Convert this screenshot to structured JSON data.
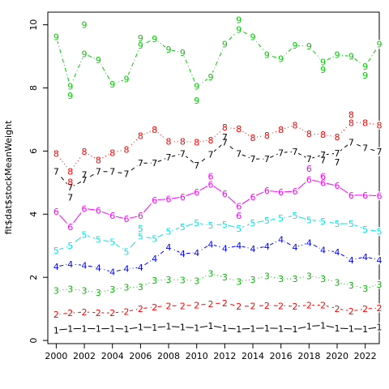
{
  "chart_data": {
    "type": "line",
    "ylabel": "fit$dat$stockMeanWeight",
    "xlabel": "",
    "xlim": [
      1999.4,
      2023.0
    ],
    "ylim": [
      -0.1,
      10.4
    ],
    "x_ticks": [
      2000,
      2002,
      2004,
      2006,
      2008,
      2010,
      2012,
      2014,
      2016,
      2018,
      2020,
      2022
    ],
    "y_ticks": [
      0,
      2,
      4,
      6,
      8,
      10
    ],
    "x": [
      2000,
      2001,
      2002,
      2003,
      2004,
      2005,
      2006,
      2007,
      2008,
      2009,
      2010,
      2011,
      2012,
      2013,
      2014,
      2015,
      2016,
      2017,
      2018,
      2019,
      2020,
      2021,
      2022,
      2023
    ],
    "series": [
      {
        "color": "#000000",
        "dash": "solid",
        "line_label": "1",
        "marker_label": "1",
        "values": [
          0.33,
          0.37,
          0.38,
          0.37,
          0.38,
          0.36,
          0.42,
          0.41,
          0.45,
          0.42,
          0.4,
          0.47,
          0.39,
          0.36,
          0.38,
          0.39,
          0.38,
          0.36,
          0.45,
          0.48,
          0.39,
          0.37,
          0.36,
          0.42
        ],
        "points": [
          0.3,
          0.34,
          0.35,
          0.35,
          0.36,
          0.35,
          0.42,
          0.44,
          0.45,
          0.4,
          0.4,
          0.47,
          0.38,
          0.36,
          0.38,
          0.4,
          0.37,
          0.34,
          0.45,
          0.51,
          0.37,
          0.36,
          0.35,
          0.42
        ]
      },
      {
        "color": "#ff0000",
        "dash": "dashed",
        "line_label": "2",
        "marker_label": "2",
        "values": [
          0.82,
          0.87,
          0.9,
          0.88,
          0.87,
          0.92,
          1.01,
          1.06,
          1.1,
          1.1,
          1.12,
          1.16,
          1.19,
          1.08,
          1.09,
          1.11,
          1.1,
          1.08,
          1.12,
          1.12,
          1.01,
          0.93,
          1.0,
          1.03
        ],
        "points": [
          0.82,
          0.87,
          0.91,
          0.9,
          0.87,
          0.9,
          1.0,
          1.05,
          1.08,
          1.08,
          1.1,
          1.15,
          1.15,
          0.95,
          1.12,
          1.1,
          1.09,
          1.06,
          1.1,
          1.1,
          0.99,
          0.9,
          1.02,
          1.03
        ]
      },
      {
        "color": "#00bb00",
        "dash": "dotted",
        "line_label": "3",
        "marker_label": "3",
        "values": [
          1.58,
          1.63,
          1.58,
          1.52,
          1.62,
          1.68,
          1.7,
          1.9,
          1.93,
          1.92,
          1.89,
          2.12,
          2.0,
          1.87,
          1.93,
          2.04,
          1.95,
          1.95,
          2.05,
          1.96,
          1.84,
          1.75,
          1.65,
          1.78
        ],
        "points": [
          1.58,
          1.63,
          1.58,
          1.52,
          1.64,
          1.7,
          1.7,
          1.92,
          1.98,
          1.92,
          1.89,
          2.25,
          2.0,
          1.85,
          1.93,
          2.1,
          1.95,
          1.95,
          2.12,
          1.96,
          1.84,
          1.75,
          1.65,
          1.78
        ]
      },
      {
        "color": "#0000ff",
        "dash": "dashdot",
        "line_label": "4",
        "marker_label": "4",
        "values": [
          2.34,
          2.42,
          2.38,
          2.3,
          2.17,
          2.27,
          2.31,
          2.6,
          2.95,
          2.75,
          2.78,
          3.05,
          2.92,
          3.0,
          2.9,
          2.98,
          3.2,
          2.95,
          3.1,
          2.87,
          2.8,
          2.55,
          2.65,
          2.55
        ],
        "points": [
          2.34,
          2.35,
          2.38,
          2.25,
          2.17,
          2.25,
          2.22,
          2.6,
          3.42,
          2.72,
          2.78,
          3.15,
          2.92,
          3.0,
          2.9,
          2.96,
          3.32,
          2.9,
          3.22,
          2.87,
          2.8,
          2.55,
          2.65,
          2.55
        ]
      },
      {
        "color": "#00e5ee",
        "dash": "longdash",
        "line_label": "5",
        "marker_label": "5",
        "values": [
          2.85,
          3.0,
          3.35,
          3.2,
          3.12,
          2.82,
          3.3,
          3.22,
          3.45,
          3.6,
          3.72,
          3.65,
          3.68,
          3.55,
          3.72,
          3.8,
          3.88,
          3.95,
          3.82,
          3.78,
          3.7,
          3.7,
          3.52,
          3.45
        ],
        "points": [
          2.8,
          2.98,
          3.32,
          3.13,
          3.12,
          2.8,
          3.55,
          3.2,
          3.6,
          3.6,
          3.85,
          3.65,
          3.68,
          3.55,
          3.72,
          3.8,
          3.9,
          3.98,
          3.82,
          3.82,
          3.7,
          3.7,
          3.52,
          3.45
        ]
      },
      {
        "color": "#ff00ff",
        "dash": "solid",
        "line_label": "6",
        "marker_label": "6",
        "values": [
          4.08,
          3.6,
          4.18,
          4.12,
          3.95,
          3.85,
          3.95,
          4.45,
          4.48,
          4.55,
          4.7,
          4.95,
          4.65,
          4.25,
          4.55,
          4.75,
          4.7,
          4.72,
          5.1,
          5.0,
          4.9,
          4.6,
          4.6,
          4.58
        ],
        "points": [
          4.08,
          3.55,
          4.22,
          4.12,
          3.8,
          3.7,
          3.95,
          4.52,
          4.45,
          4.58,
          4.7,
          5.2,
          4.65,
          3.95,
          4.55,
          4.78,
          4.7,
          4.72,
          5.45,
          5.2,
          4.9,
          4.45,
          4.6,
          4.58
        ]
      },
      {
        "color": "#000000",
        "dash": "dashed",
        "line_label": "7",
        "marker_label": "7",
        "values": [
          5.35,
          4.85,
          5.08,
          5.35,
          5.35,
          5.28,
          5.62,
          5.62,
          5.8,
          5.92,
          5.55,
          5.9,
          6.28,
          5.92,
          5.75,
          5.75,
          5.95,
          5.98,
          5.75,
          5.88,
          5.93,
          6.28,
          6.1,
          5.98
        ],
        "points": [
          5.5,
          4.53,
          5.25,
          5.35,
          5.35,
          5.28,
          5.75,
          5.75,
          5.8,
          6.05,
          5.55,
          5.9,
          6.45,
          5.82,
          5.75,
          5.75,
          5.95,
          6.05,
          5.75,
          5.72,
          5.65,
          6.28,
          6.1,
          5.98
        ]
      },
      {
        "color": "#ff0000",
        "dash": "dotted",
        "line_label": "8",
        "marker_label": "8",
        "values": [
          5.92,
          5.35,
          5.98,
          5.72,
          5.95,
          6.05,
          6.48,
          6.68,
          6.3,
          6.3,
          6.28,
          6.35,
          6.75,
          6.7,
          6.42,
          6.5,
          6.68,
          6.82,
          6.55,
          6.52,
          6.45,
          6.9,
          6.9,
          6.82
        ],
        "points": [
          5.92,
          5.02,
          6.12,
          5.72,
          5.95,
          6.05,
          6.58,
          6.7,
          6.3,
          6.3,
          6.28,
          6.45,
          6.88,
          6.75,
          6.5,
          6.55,
          6.78,
          6.88,
          6.58,
          6.52,
          6.45,
          7.15,
          6.9,
          6.82
        ]
      },
      {
        "color": "#00cc00",
        "dash": "dashdot",
        "line_label": "9",
        "marker_label": "9",
        "values": [
          9.62,
          8.05,
          9.08,
          8.88,
          8.12,
          8.28,
          9.35,
          9.55,
          9.22,
          9.12,
          8.05,
          8.35,
          9.38,
          9.85,
          9.62,
          9.05,
          8.92,
          9.35,
          9.32,
          8.82,
          9.05,
          9.0,
          8.68,
          9.38
        ],
        "points": [
          9.62,
          7.75,
          10.0,
          8.88,
          8.12,
          8.28,
          9.58,
          9.55,
          9.22,
          9.12,
          7.6,
          8.35,
          9.38,
          10.15,
          9.62,
          9.05,
          8.92,
          9.35,
          9.32,
          8.58,
          9.05,
          9.0,
          8.4,
          9.38
        ]
      }
    ]
  }
}
